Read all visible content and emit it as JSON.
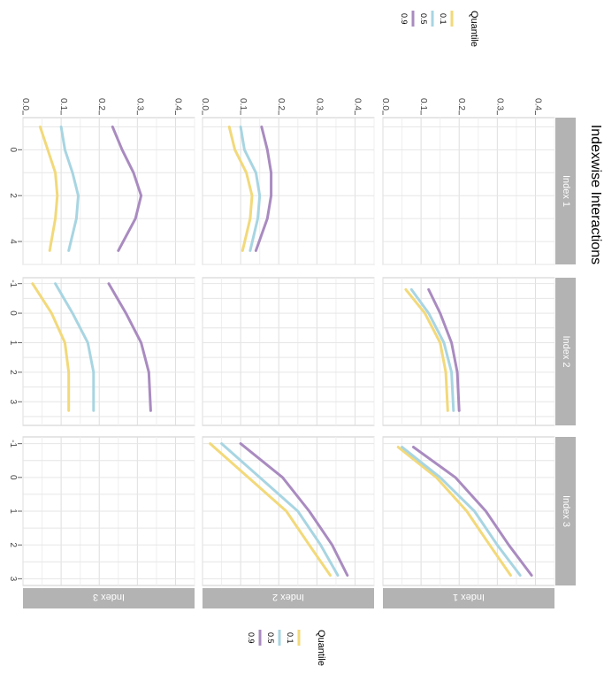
{
  "chart_data": {
    "type": "line",
    "title": "Indexwise Interactions",
    "facet_rows": [
      "Index 1",
      "Index 2",
      "Index 3"
    ],
    "facet_cols": [
      "Index 1",
      "Index 2",
      "Index 3"
    ],
    "ylim": [
      0,
      0.45
    ],
    "y_ticks": [
      "0.0",
      "0.1",
      "0.2",
      "0.3",
      "0.4"
    ],
    "col_x_ranges": [
      [
        -1.4,
        5.0
      ],
      [
        -1.2,
        3.8
      ],
      [
        -1.2,
        3.2
      ]
    ],
    "col_x_ticks": [
      [
        "0",
        "2",
        "4"
      ],
      [
        "-1",
        "0",
        "1",
        "2",
        "3"
      ],
      [
        "-1",
        "0",
        "1",
        "2",
        "3"
      ]
    ],
    "grid": true,
    "legend": {
      "title": "Quantile",
      "placement": "top-right",
      "entries": [
        {
          "label": "0.1",
          "color": "#f2d97a"
        },
        {
          "label": "0.5",
          "color": "#a8d5e2"
        },
        {
          "label": "0.9",
          "color": "#a98bc0"
        }
      ]
    },
    "panels": [
      {
        "row": 0,
        "col": 1,
        "series": [
          {
            "name": "0.1",
            "color": "#f2d97a",
            "x": [
              -0.8,
              0,
              1,
              2,
              3.3
            ],
            "values": [
              0.06,
              0.11,
              0.15,
              0.165,
              0.17
            ]
          },
          {
            "name": "0.5",
            "color": "#a8d5e2",
            "x": [
              -0.8,
              0,
              1,
              2,
              3.3
            ],
            "values": [
              0.075,
              0.12,
              0.16,
              0.18,
              0.185
            ]
          },
          {
            "name": "0.9",
            "color": "#a98bc0",
            "x": [
              -0.8,
              0,
              1,
              2,
              3.3
            ],
            "values": [
              0.12,
              0.15,
              0.18,
              0.195,
              0.2
            ]
          }
        ]
      },
      {
        "row": 0,
        "col": 2,
        "series": [
          {
            "name": "0.1",
            "color": "#f2d97a",
            "x": [
              -0.9,
              0,
              1,
              2,
              2.9
            ],
            "values": [
              0.04,
              0.14,
              0.22,
              0.28,
              0.335
            ]
          },
          {
            "name": "0.5",
            "color": "#a8d5e2",
            "x": [
              -0.9,
              0,
              1,
              2,
              2.9
            ],
            "values": [
              0.05,
              0.15,
              0.24,
              0.3,
              0.36
            ]
          },
          {
            "name": "0.9",
            "color": "#a98bc0",
            "x": [
              -0.9,
              0,
              1,
              2,
              2.9
            ],
            "values": [
              0.08,
              0.19,
              0.27,
              0.33,
              0.39
            ]
          }
        ]
      },
      {
        "row": 1,
        "col": 0,
        "series": [
          {
            "name": "0.1",
            "color": "#f2d97a",
            "x": [
              -1,
              0,
              1,
              2,
              3,
              4.4
            ],
            "values": [
              0.07,
              0.085,
              0.115,
              0.13,
              0.125,
              0.105
            ]
          },
          {
            "name": "0.5",
            "color": "#a8d5e2",
            "x": [
              -1,
              0,
              1,
              2,
              3,
              4.4
            ],
            "values": [
              0.1,
              0.11,
              0.14,
              0.15,
              0.145,
              0.125
            ]
          },
          {
            "name": "0.9",
            "color": "#a98bc0",
            "x": [
              -1,
              0,
              1,
              2,
              3,
              4.4
            ],
            "values": [
              0.155,
              0.17,
              0.18,
              0.18,
              0.17,
              0.14
            ]
          }
        ]
      },
      {
        "row": 1,
        "col": 2,
        "series": [
          {
            "name": "0.1",
            "color": "#f2d97a",
            "x": [
              -1,
              0,
              1,
              2,
              2.9
            ],
            "values": [
              0.02,
              0.12,
              0.22,
              0.28,
              0.335
            ]
          },
          {
            "name": "0.5",
            "color": "#a8d5e2",
            "x": [
              -1,
              0,
              1,
              2,
              2.9
            ],
            "values": [
              0.05,
              0.15,
              0.25,
              0.31,
              0.355
            ]
          },
          {
            "name": "0.9",
            "color": "#a98bc0",
            "x": [
              -1,
              0,
              1,
              2,
              2.9
            ],
            "values": [
              0.1,
              0.21,
              0.28,
              0.34,
              0.38
            ]
          }
        ]
      },
      {
        "row": 2,
        "col": 0,
        "series": [
          {
            "name": "0.1",
            "color": "#f2d97a",
            "x": [
              -1,
              0,
              1,
              2,
              3,
              4.4
            ],
            "values": [
              0.045,
              0.065,
              0.085,
              0.09,
              0.085,
              0.07
            ]
          },
          {
            "name": "0.5",
            "color": "#a8d5e2",
            "x": [
              -1,
              0,
              1,
              2,
              3,
              4.4
            ],
            "values": [
              0.1,
              0.11,
              0.13,
              0.145,
              0.14,
              0.12
            ]
          },
          {
            "name": "0.9",
            "color": "#a98bc0",
            "x": [
              -1,
              0,
              1,
              2,
              3,
              4.4
            ],
            "values": [
              0.235,
              0.26,
              0.29,
              0.31,
              0.295,
              0.25
            ]
          }
        ]
      },
      {
        "row": 2,
        "col": 1,
        "series": [
          {
            "name": "0.1",
            "color": "#f2d97a",
            "x": [
              -1,
              0,
              1,
              2,
              3.3
            ],
            "values": [
              0.025,
              0.075,
              0.11,
              0.12,
              0.12
            ]
          },
          {
            "name": "0.5",
            "color": "#a8d5e2",
            "x": [
              -1,
              0,
              1,
              2,
              3.3
            ],
            "values": [
              0.085,
              0.13,
              0.17,
              0.185,
              0.185
            ]
          },
          {
            "name": "0.9",
            "color": "#a98bc0",
            "x": [
              -1,
              0,
              1,
              2,
              3.3
            ],
            "values": [
              0.225,
              0.27,
              0.31,
              0.33,
              0.335
            ]
          }
        ]
      }
    ]
  }
}
